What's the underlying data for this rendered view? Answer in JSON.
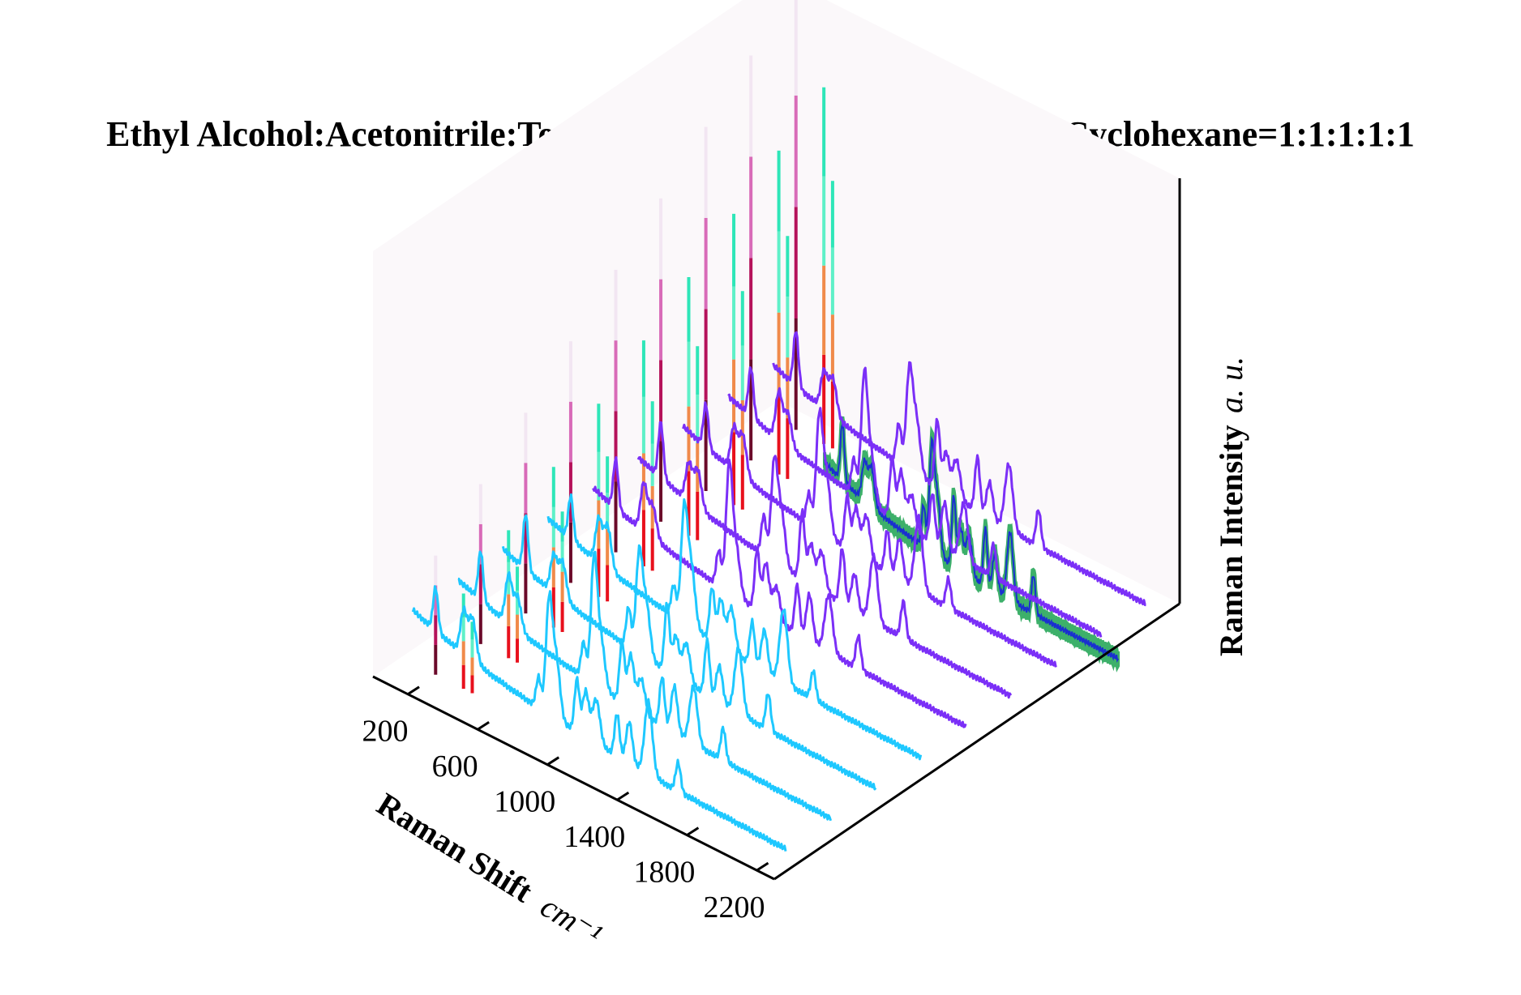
{
  "chart_data": {
    "type": "line",
    "projection": "3d-waterfall",
    "title": "Ethyl Alcohol:Acetonitrile:Tetraethyl orthosilicate:1-propanol:Cyclohexane=1:1:1:1:1",
    "xlabel": "Raman Shift",
    "xlabel_unit": "cm⁻¹",
    "zlabel": "Raman Intensity",
    "zlabel_unit": "a. u.",
    "x_ticks": [
      "200",
      "600",
      "1000",
      "1400",
      "1800",
      "2200"
    ],
    "xlim": [
      0,
      2300
    ],
    "grid": false,
    "colors": {
      "pane": "#fbf8fa",
      "spectra_low": "#7b2ff7",
      "spectra_high": "#1ec8ff",
      "projection_fill": "#3db06a",
      "projection_line": "#1a2fd0",
      "bar_palette_left": [
        "#6b0a2a",
        "#b5125a",
        "#d86bb8",
        "#f2e6f2"
      ],
      "bar_palette_right": [
        "#e8101c",
        "#f08a4a",
        "#5ff0c8",
        "#2ee6b8"
      ]
    },
    "peaks": [
      {
        "x": 230,
        "h": 0.45
      },
      {
        "x": 390,
        "h": 0.38
      },
      {
        "x": 440,
        "h": 0.35
      },
      {
        "x": 820,
        "h": 0.32
      },
      {
        "x": 880,
        "h": 1.0
      },
      {
        "x": 920,
        "h": 0.5
      },
      {
        "x": 1040,
        "h": 0.55
      },
      {
        "x": 1090,
        "h": 0.42
      },
      {
        "x": 1150,
        "h": 0.36
      },
      {
        "x": 1270,
        "h": 0.45
      },
      {
        "x": 1340,
        "h": 0.38
      },
      {
        "x": 1450,
        "h": 0.6
      },
      {
        "x": 1620,
        "h": 0.3
      }
    ],
    "series": [
      {
        "offset": 0
      },
      {
        "offset": 1
      },
      {
        "offset": 2
      },
      {
        "offset": 3
      },
      {
        "offset": 4
      },
      {
        "offset": 5
      },
      {
        "offset": 6
      },
      {
        "offset": 7
      },
      {
        "offset": 8
      }
    ]
  }
}
